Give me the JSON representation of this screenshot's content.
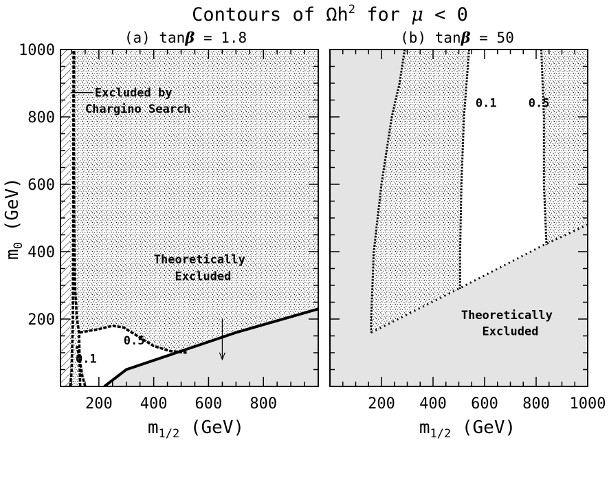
{
  "figure": {
    "title_main": "Contours of Ωh",
    "title_sup": "2",
    "title_tail": " for ",
    "title_mu": "μ",
    "title_cond": " < 0"
  },
  "colors": {
    "excluded_fill": "#e4e4e4",
    "allowed_fill": "#ffffff",
    "ink": "#000000"
  },
  "chart_data": [
    {
      "type": "contour",
      "panel_label": "(a) tan",
      "panel_beta": "β",
      "panel_value": " = 1.8",
      "xlabel_main": "m",
      "xlabel_sub": "1/2",
      "xlabel_unit": " (GeV)",
      "ylabel_main": "m",
      "ylabel_sub": "0",
      "ylabel_unit": " (GeV)",
      "xlim": [
        60,
        1000
      ],
      "ylim": [
        0,
        1000
      ],
      "x_ticks": [
        200,
        400,
        600,
        800
      ],
      "y_ticks": [
        200,
        400,
        600,
        800,
        1000
      ],
      "contours": [
        {
          "label": "0.1",
          "points": [
            [
              95,
              0
            ],
            [
              100,
              40
            ],
            [
              102,
              100
            ],
            [
              105,
              200
            ],
            [
              106,
              400
            ],
            [
              107,
              600
            ],
            [
              107,
              800
            ],
            [
              108,
              1000
            ]
          ]
        },
        {
          "label": "0.5",
          "points": [
            [
              132,
              0
            ],
            [
              130,
              60
            ],
            [
              128,
              160
            ],
            [
              120,
              200
            ],
            [
              113,
              300
            ],
            [
              110,
              500
            ],
            [
              109,
              800
            ],
            [
              110,
              1000
            ]
          ]
        },
        {
          "label": "0.5",
          "points": [
            [
              130,
              160
            ],
            [
              200,
              170
            ],
            [
              250,
              180
            ],
            [
              290,
              175
            ],
            [
              340,
              150
            ],
            [
              400,
              120
            ],
            [
              460,
              105
            ],
            [
              520,
              100
            ]
          ]
        },
        {
          "label": "0.1",
          "points": [
            [
              150,
              0
            ],
            [
              140,
              30
            ],
            [
              130,
              80
            ],
            [
              120,
              120
            ]
          ]
        }
      ],
      "excluded_regions": [
        {
          "name": "Theoretically Excluded",
          "boundary": [
            [
              220,
              0
            ],
            [
              300,
              50
            ],
            [
              500,
              105
            ],
            [
              700,
              160
            ],
            [
              1000,
              230
            ]
          ]
        }
      ],
      "hatched_region": {
        "name": "Excluded by Chargino Search",
        "x_max": 95
      },
      "annotations": [
        {
          "text_line1": "Excluded by",
          "text_line2": "Chargino Search",
          "x": 150,
          "y": 860
        },
        {
          "text_line1": "Theoretically",
          "text_line2": "Excluded",
          "x": 650,
          "y": 270
        },
        {
          "text": "0.5",
          "x": 320,
          "y": 125
        },
        {
          "text": "0.1",
          "x": 160,
          "y": 70
        }
      ]
    },
    {
      "type": "contour",
      "panel_label": "(b) tan",
      "panel_beta": "β",
      "panel_value": " = 50",
      "xlabel_main": "m",
      "xlabel_sub": "1/2",
      "xlabel_unit": " (GeV)",
      "xlim": [
        0,
        1000
      ],
      "ylim": [
        0,
        1000
      ],
      "x_ticks": [
        200,
        400,
        600,
        800,
        1000
      ],
      "y_ticks": [
        200,
        400,
        600,
        800
      ],
      "contours": [
        {
          "label": "0.1",
          "points": [
            [
              540,
              1000
            ],
            [
              530,
              900
            ],
            [
              520,
              800
            ],
            [
              510,
              600
            ],
            [
              505,
              400
            ],
            [
              505,
              290
            ]
          ]
        },
        {
          "label": "0.5",
          "points": [
            [
              820,
              1000
            ],
            [
              825,
              900
            ],
            [
              830,
              800
            ],
            [
              830,
              600
            ],
            [
              840,
              420
            ]
          ]
        },
        {
          "label": "",
          "points": [
            [
              290,
              1000
            ],
            [
              270,
              900
            ],
            [
              240,
              800
            ],
            [
              200,
              600
            ],
            [
              170,
              400
            ],
            [
              160,
              200
            ],
            [
              160,
              160
            ]
          ]
        }
      ],
      "excluded_regions": [
        {
          "name": "Theoretically Excluded",
          "boundary": [
            [
              160,
              160
            ],
            [
              500,
              290
            ],
            [
              830,
              420
            ],
            [
              1000,
              480
            ]
          ]
        }
      ],
      "annotations": [
        {
          "text": "0.1",
          "x": 575,
          "y": 830
        },
        {
          "text": "0.5",
          "x": 770,
          "y": 830
        },
        {
          "text_line1": "Theoretically",
          "text_line2": "Excluded",
          "x": 700,
          "y": 200
        }
      ]
    }
  ]
}
